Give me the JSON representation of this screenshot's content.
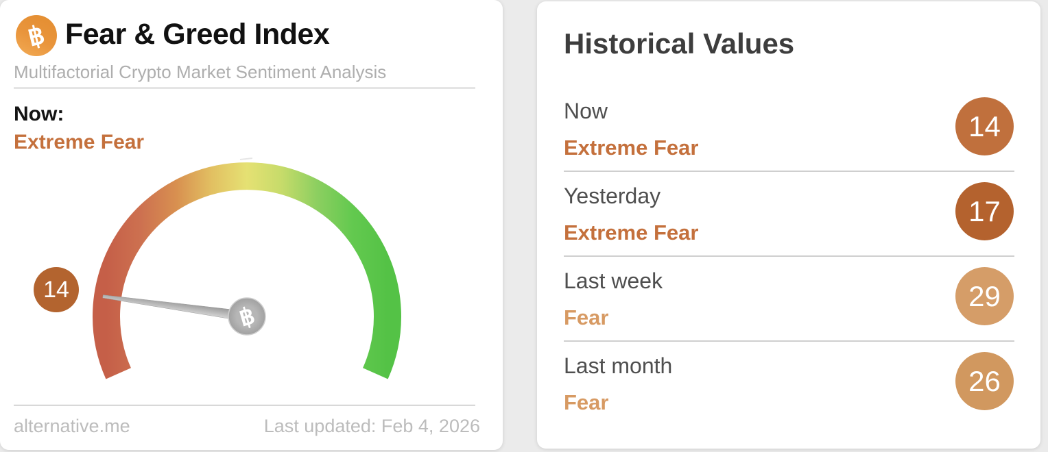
{
  "page": {
    "background_color": "#ebebeb"
  },
  "colors": {
    "extreme_fear_text": "#c4703c",
    "fear_text": "#d79a63"
  },
  "left_card": {
    "title": "Fear & Greed Index",
    "subtitle": "Multifactorial Crypto Market Sentiment Analysis",
    "bitcoin_icon": {
      "glyph": "฿",
      "color": "#e9953c"
    },
    "now_label": "Now:",
    "now_value": "Extreme Fear",
    "footer_left": "alternative.me",
    "footer_right": "Last updated: Feb 4, 2026"
  },
  "chart_data": {
    "type": "gauge",
    "title": "Fear & Greed Index",
    "value": 14,
    "value_label": "Extreme Fear",
    "min": 0,
    "max": 100,
    "start_angle_deg": 204,
    "sweep_deg": 228,
    "badge_color": "#b3642f",
    "arc_gradient": [
      "#c55f48",
      "#cd7150",
      "#d89050",
      "#e2c062",
      "#e5e173",
      "#c6db6a",
      "#8ccf60",
      "#63c94f",
      "#54c246"
    ],
    "needle_color": "#b5b5b5",
    "hub_glyph": "฿"
  },
  "right_card": {
    "title": "Historical Values",
    "rows": [
      {
        "period": "Now",
        "label": "Extreme Fear",
        "value": 14,
        "label_color": "#c4703c",
        "badge_color": "#c0703d"
      },
      {
        "period": "Yesterday",
        "label": "Extreme Fear",
        "value": 17,
        "label_color": "#c4703c",
        "badge_color": "#b4622e"
      },
      {
        "period": "Last week",
        "label": "Fear",
        "value": 29,
        "label_color": "#d79a63",
        "badge_color": "#d59d68"
      },
      {
        "period": "Last month",
        "label": "Fear",
        "value": 26,
        "label_color": "#d79a63",
        "badge_color": "#d1985f"
      }
    ]
  }
}
